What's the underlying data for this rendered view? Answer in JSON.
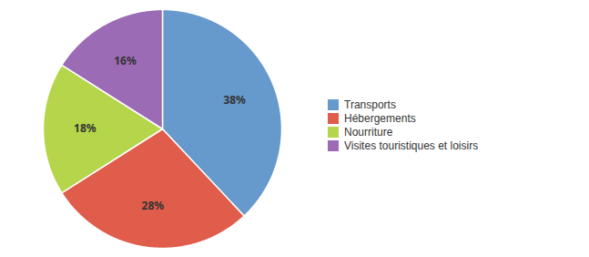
{
  "chart_data": {
    "type": "pie",
    "categories": [
      "Transports",
      "Hébergements",
      "Nourriture",
      "Visites touristiques et loisirs"
    ],
    "values": [
      38,
      28,
      18,
      16
    ],
    "value_labels": [
      "38%",
      "28%",
      "18%",
      "16%"
    ],
    "colors": [
      "#6699CC",
      "#E05C4B",
      "#B5D54A",
      "#9B6BB5"
    ],
    "data_labels": true,
    "legend": "right"
  }
}
